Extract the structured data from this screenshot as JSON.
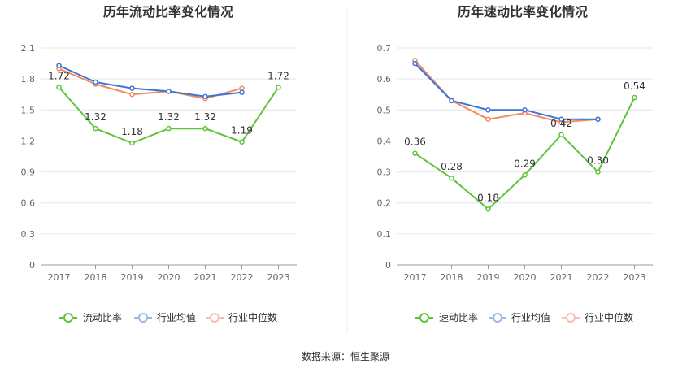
{
  "source": "数据来源：恒生聚源",
  "colors": {
    "company": "#5ec53a",
    "industry_avg": "#3d74d6",
    "industry_median": "#f58a5f"
  },
  "chart_data": [
    {
      "type": "line",
      "title": "历年流动比率变化情况",
      "x": [
        "2017",
        "2018",
        "2019",
        "2020",
        "2021",
        "2022",
        "2023"
      ],
      "ylim": [
        0,
        2.1
      ],
      "yticks": [
        "0",
        "0.3",
        "0.6",
        "0.9",
        "1.2",
        "1.5",
        "1.8",
        "2.1"
      ],
      "grid": true,
      "legend_position": "bottom",
      "series": [
        {
          "name": "流动比率",
          "values": [
            1.72,
            1.32,
            1.18,
            1.32,
            1.32,
            1.19,
            1.72
          ],
          "labels": [
            "1.72",
            "1.32",
            "1.18",
            "1.32",
            "1.32",
            "1.19",
            "1.72"
          ]
        },
        {
          "name": "行业均值",
          "values": [
            1.93,
            1.77,
            1.71,
            1.68,
            1.63,
            1.67,
            null
          ]
        },
        {
          "name": "行业中位数",
          "values": [
            1.9,
            1.75,
            1.65,
            1.68,
            1.61,
            1.71,
            null
          ]
        }
      ]
    },
    {
      "type": "line",
      "title": "历年速动比率变化情况",
      "x": [
        "2017",
        "2018",
        "2019",
        "2020",
        "2021",
        "2022",
        "2023"
      ],
      "ylim": [
        0,
        0.7
      ],
      "yticks": [
        "0",
        "0.1",
        "0.2",
        "0.3",
        "0.4",
        "0.5",
        "0.6",
        "0.7"
      ],
      "grid": true,
      "legend_position": "bottom",
      "series": [
        {
          "name": "速动比率",
          "values": [
            0.36,
            0.28,
            0.18,
            0.29,
            0.42,
            0.3,
            0.54
          ],
          "labels": [
            "0.36",
            "0.28",
            "0.18",
            "0.29",
            "0.42",
            "0.30",
            "0.54"
          ]
        },
        {
          "name": "行业均值",
          "values": [
            0.65,
            0.53,
            0.5,
            0.5,
            0.47,
            0.47,
            null
          ]
        },
        {
          "name": "行业中位数",
          "values": [
            0.66,
            0.53,
            0.47,
            0.49,
            0.46,
            0.47,
            null
          ]
        }
      ]
    }
  ]
}
